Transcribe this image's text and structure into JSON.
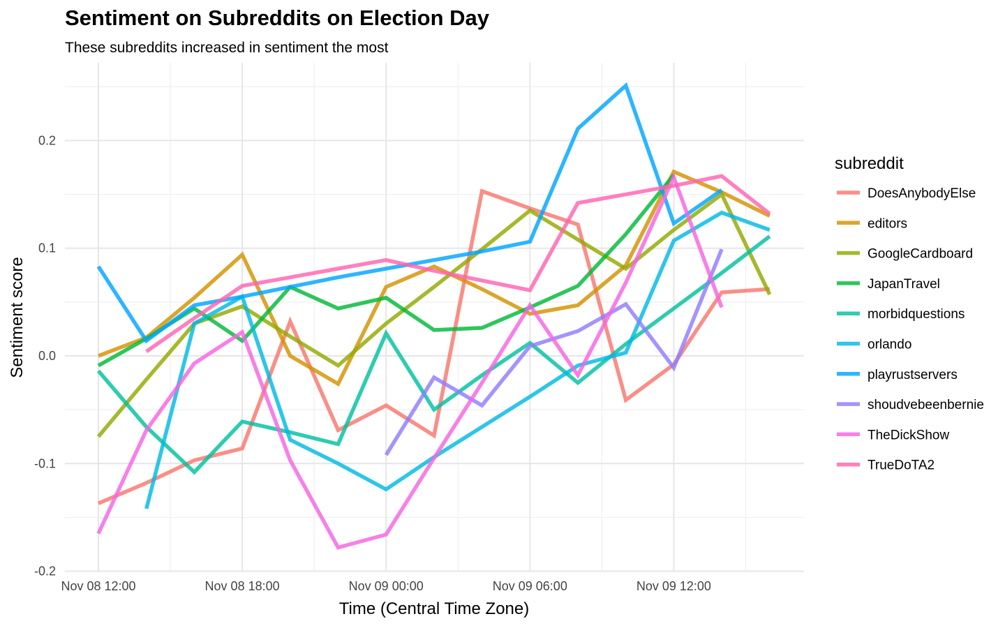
{
  "chart_data": {
    "type": "line",
    "title": "Sentiment on Subreddits on Election Day",
    "subtitle": "These subreddits increased in sentiment the most",
    "xlabel": "Time (Central Time Zone)",
    "ylabel": "Sentiment score",
    "x_unit": "2-hour intervals",
    "x": [
      "Nov 08 12:00",
      "Nov 08 14:00",
      "Nov 08 16:00",
      "Nov 08 18:00",
      "Nov 08 20:00",
      "Nov 08 22:00",
      "Nov 09 00:00",
      "Nov 09 02:00",
      "Nov 09 04:00",
      "Nov 09 06:00",
      "Nov 09 08:00",
      "Nov 09 10:00",
      "Nov 09 12:00",
      "Nov 09 14:00",
      "Nov 09 16:00"
    ],
    "x_ticks": [
      "Nov 08 12:00",
      "Nov 08 18:00",
      "Nov 09 00:00",
      "Nov 09 06:00",
      "Nov 09 12:00"
    ],
    "y_ticks": [
      0.2,
      0.1,
      0.0,
      -0.1,
      -0.2
    ],
    "y_tick_labels": [
      "0.2",
      "0.1",
      "0.0",
      "-0.1",
      "-0.2"
    ],
    "ylim": [
      -0.2,
      0.255
    ],
    "grid": true,
    "legend_title": "subreddit",
    "legend_position": "right",
    "series": [
      {
        "name": "DoesAnybodyElse",
        "color": "#F8766D",
        "values": [
          -0.137,
          -0.118,
          -0.097,
          -0.086,
          0.032,
          -0.069,
          -0.046,
          -0.074,
          0.153,
          0.137,
          0.122,
          -0.041,
          -0.008,
          0.059,
          0.062
        ]
      },
      {
        "name": "editors",
        "color": "#D39200",
        "values": [
          0.0,
          0.017,
          0.054,
          0.094,
          0.0,
          -0.026,
          0.064,
          0.083,
          0.062,
          0.039,
          0.047,
          0.084,
          0.171,
          0.152,
          0.13
        ]
      },
      {
        "name": "GoogleCardboard",
        "color": "#93AA00",
        "values": [
          -0.075,
          -0.022,
          0.03,
          0.046,
          0.018,
          -0.009,
          0.03,
          0.064,
          0.099,
          0.135,
          0.108,
          0.081,
          0.117,
          0.15,
          0.057
        ]
      },
      {
        "name": "JapanTravel",
        "color": "#00BA38",
        "values": [
          -0.009,
          0.016,
          0.044,
          0.014,
          0.064,
          0.044,
          0.054,
          0.024,
          0.026,
          0.045,
          0.065,
          0.113,
          0.168,
          null,
          null
        ]
      },
      {
        "name": "morbidquestions",
        "color": "#00C19F",
        "values": [
          -0.014,
          -0.066,
          -0.108,
          -0.061,
          -0.071,
          -0.082,
          0.021,
          -0.05,
          -0.018,
          0.012,
          -0.025,
          0.011,
          0.044,
          0.077,
          0.111
        ]
      },
      {
        "name": "orlando",
        "color": "#00B9E3",
        "values": [
          null,
          -0.142,
          0.03,
          0.055,
          -0.078,
          -0.1,
          -0.124,
          -0.094,
          -0.066,
          -0.038,
          -0.009,
          0.003,
          0.107,
          0.133,
          0.117
        ]
      },
      {
        "name": "playrustservers",
        "color": "#00A5FF",
        "values": [
          0.083,
          0.014,
          0.047,
          0.055,
          0.064,
          0.073,
          0.081,
          0.089,
          0.097,
          0.106,
          0.211,
          0.251,
          0.123,
          0.154,
          null
        ]
      },
      {
        "name": "shoudvebeenbernie",
        "color": "#8F7CFF",
        "values": [
          null,
          null,
          null,
          null,
          null,
          null,
          -0.092,
          -0.02,
          -0.046,
          0.009,
          0.023,
          0.048,
          -0.011,
          0.099,
          null
        ]
      },
      {
        "name": "TheDickShow",
        "color": "#F564E3",
        "values": [
          -0.165,
          -0.069,
          -0.007,
          0.022,
          -0.097,
          -0.178,
          -0.166,
          -0.095,
          -0.025,
          0.047,
          -0.018,
          0.068,
          0.166,
          0.045,
          null
        ]
      },
      {
        "name": "TrueDoTA2",
        "color": "#FF64B0",
        "values": [
          null,
          0.004,
          0.035,
          0.065,
          0.073,
          0.081,
          0.089,
          0.079,
          0.07,
          0.061,
          0.142,
          0.15,
          0.158,
          0.167,
          0.132
        ]
      }
    ]
  }
}
